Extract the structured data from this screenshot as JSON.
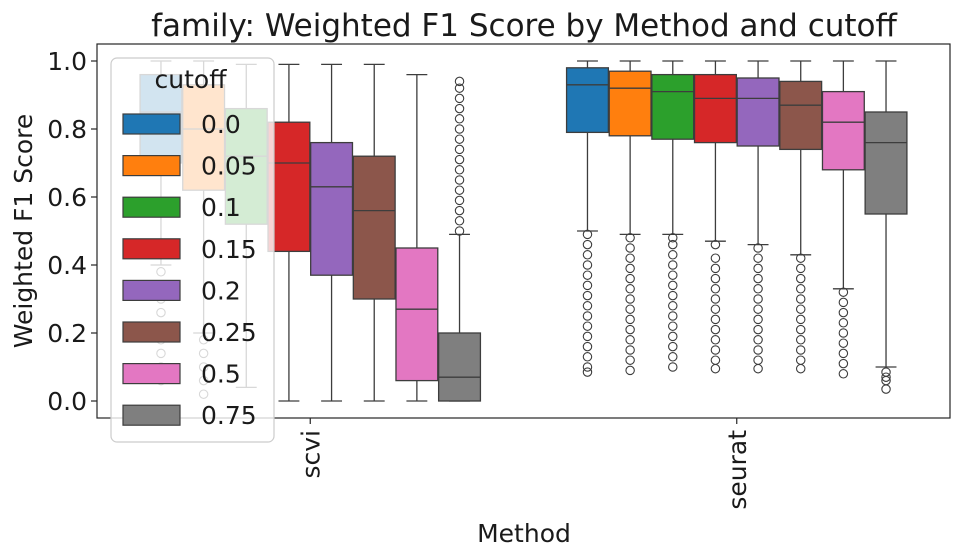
{
  "chart_data": {
    "type": "box",
    "title": "family: Weighted F1 Score by Method and cutoff",
    "xlabel": "Method",
    "ylabel": "Weighted F1 Score",
    "ylim": [
      -0.05,
      1.05
    ],
    "yticks": [
      "0.0",
      "0.2",
      "0.4",
      "0.6",
      "0.8",
      "1.0"
    ],
    "ytick_values": [
      0.0,
      0.2,
      0.4,
      0.6,
      0.8,
      1.0
    ],
    "categories": [
      "scvi",
      "seurat"
    ],
    "grid": false,
    "legend": {
      "title": "cutoff",
      "placement": "upper-left",
      "labels": [
        "0.0",
        "0.05",
        "0.1",
        "0.15",
        "0.2",
        "0.25",
        "0.5",
        "0.75"
      ]
    },
    "series": [
      {
        "name": "0.0",
        "color": "#1f77b4",
        "boxes": [
          {
            "whislo": 0.4,
            "q1": 0.7,
            "med": 0.85,
            "q3": 0.96,
            "whishi": 1.0,
            "outliers": [
              0.06,
              0.1,
              0.14,
              0.18,
              0.22,
              0.26,
              0.3,
              0.34,
              0.38
            ]
          },
          {
            "whislo": 0.5,
            "q1": 0.79,
            "med": 0.93,
            "q3": 0.98,
            "whishi": 1.0,
            "outliers": [
              0.085,
              0.1,
              0.13,
              0.16,
              0.19,
              0.22,
              0.25,
              0.28,
              0.31,
              0.34,
              0.37,
              0.4,
              0.43,
              0.46,
              0.49
            ]
          }
        ]
      },
      {
        "name": "0.05",
        "color": "#ff7f0e",
        "boxes": [
          {
            "whislo": 0.2,
            "q1": 0.62,
            "med": 0.8,
            "q3": 0.93,
            "whishi": 1.0,
            "outliers": [
              0.02,
              0.06,
              0.1,
              0.14,
              0.18
            ]
          },
          {
            "whislo": 0.49,
            "q1": 0.78,
            "med": 0.92,
            "q3": 0.97,
            "whishi": 1.0,
            "outliers": [
              0.09,
              0.12,
              0.15,
              0.18,
              0.21,
              0.24,
              0.27,
              0.3,
              0.33,
              0.36,
              0.39,
              0.42,
              0.45,
              0.48
            ]
          }
        ]
      },
      {
        "name": "0.1",
        "color": "#2ca02c",
        "boxes": [
          {
            "whislo": 0.04,
            "q1": 0.52,
            "med": 0.72,
            "q3": 0.86,
            "whishi": 0.99,
            "outliers": []
          },
          {
            "whislo": 0.49,
            "q1": 0.77,
            "med": 0.91,
            "q3": 0.96,
            "whishi": 1.0,
            "outliers": [
              0.1,
              0.13,
              0.16,
              0.19,
              0.22,
              0.25,
              0.28,
              0.31,
              0.34,
              0.37,
              0.4,
              0.43,
              0.46,
              0.48
            ]
          }
        ]
      },
      {
        "name": "0.15",
        "color": "#d62728",
        "boxes": [
          {
            "whislo": 0.0,
            "q1": 0.44,
            "med": 0.7,
            "q3": 0.82,
            "whishi": 0.99,
            "outliers": []
          },
          {
            "whislo": 0.47,
            "q1": 0.76,
            "med": 0.89,
            "q3": 0.96,
            "whishi": 1.0,
            "outliers": [
              0.095,
              0.12,
              0.15,
              0.18,
              0.21,
              0.24,
              0.27,
              0.3,
              0.33,
              0.36,
              0.39,
              0.42,
              0.46
            ]
          }
        ]
      },
      {
        "name": "0.2",
        "color": "#9467bd",
        "boxes": [
          {
            "whislo": 0.0,
            "q1": 0.37,
            "med": 0.63,
            "q3": 0.76,
            "whishi": 0.99,
            "outliers": []
          },
          {
            "whislo": 0.46,
            "q1": 0.75,
            "med": 0.89,
            "q3": 0.95,
            "whishi": 1.0,
            "outliers": [
              0.095,
              0.12,
              0.15,
              0.18,
              0.21,
              0.24,
              0.27,
              0.3,
              0.33,
              0.36,
              0.39,
              0.42,
              0.45
            ]
          }
        ]
      },
      {
        "name": "0.25",
        "color": "#8c564b",
        "boxes": [
          {
            "whislo": 0.0,
            "q1": 0.3,
            "med": 0.56,
            "q3": 0.72,
            "whishi": 0.99,
            "outliers": []
          },
          {
            "whislo": 0.43,
            "q1": 0.74,
            "med": 0.87,
            "q3": 0.94,
            "whishi": 1.0,
            "outliers": [
              0.095,
              0.12,
              0.15,
              0.18,
              0.21,
              0.24,
              0.27,
              0.3,
              0.33,
              0.36,
              0.39,
              0.42
            ]
          }
        ]
      },
      {
        "name": "0.5",
        "color": "#e377c2",
        "boxes": [
          {
            "whislo": 0.0,
            "q1": 0.06,
            "med": 0.27,
            "q3": 0.45,
            "whishi": 0.96,
            "outliers": []
          },
          {
            "whislo": 0.33,
            "q1": 0.68,
            "med": 0.82,
            "q3": 0.91,
            "whishi": 1.0,
            "outliers": [
              0.08,
              0.11,
              0.14,
              0.17,
              0.2,
              0.23,
              0.26,
              0.29,
              0.32
            ]
          }
        ]
      },
      {
        "name": "0.75",
        "color": "#7f7f7f",
        "boxes": [
          {
            "whislo": 0.0,
            "q1": 0.0,
            "med": 0.07,
            "q3": 0.2,
            "whishi": 0.49,
            "outliers": [
              0.5,
              0.53,
              0.56,
              0.59,
              0.62,
              0.65,
              0.68,
              0.71,
              0.74,
              0.77,
              0.8,
              0.83,
              0.86,
              0.89,
              0.92,
              0.94
            ]
          },
          {
            "whislo": 0.1,
            "q1": 0.55,
            "med": 0.76,
            "q3": 0.85,
            "whishi": 1.0,
            "outliers": [
              0.035,
              0.06,
              0.07,
              0.085
            ]
          }
        ]
      }
    ]
  }
}
